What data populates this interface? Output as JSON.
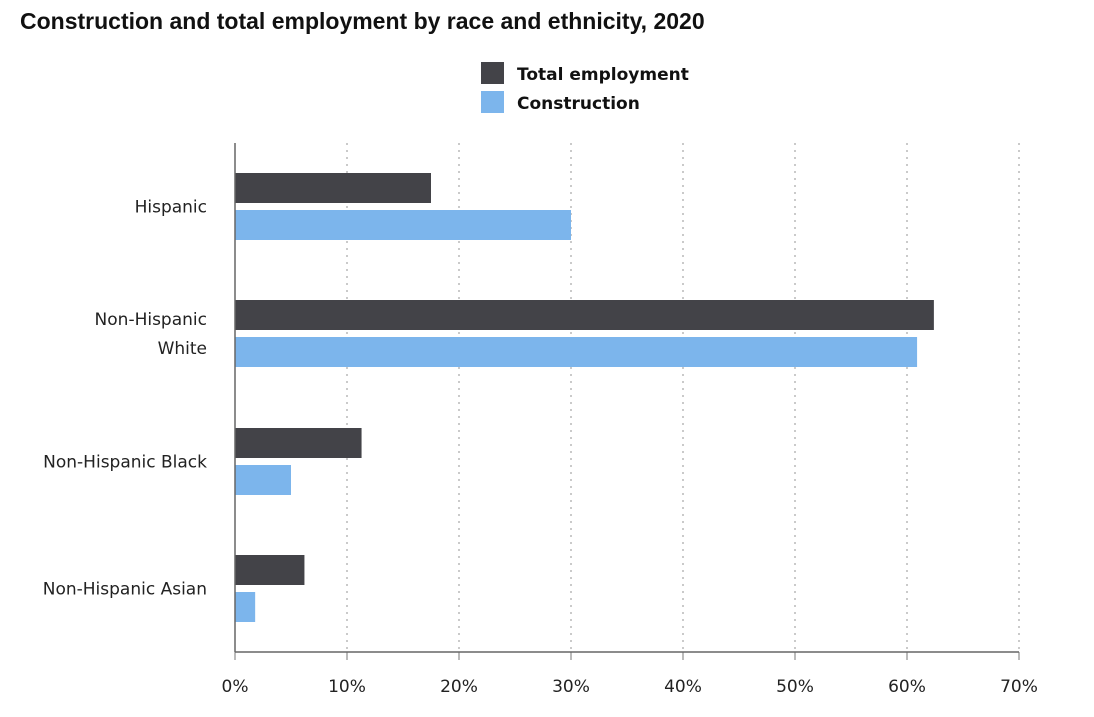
{
  "chart_data": {
    "type": "bar",
    "orientation": "horizontal",
    "title": "Construction and total employment by race and ethnicity, 2020",
    "xlabel": "",
    "ylabel": "",
    "categories": [
      [
        "Hispanic"
      ],
      [
        "Non-Hispanic",
        "White"
      ],
      [
        "Non-Hispanic Black"
      ],
      [
        "Non-Hispanic Asian"
      ]
    ],
    "series": [
      {
        "name": "Total employment",
        "color": "#434348",
        "values": [
          17.5,
          62.4,
          11.3,
          6.2
        ]
      },
      {
        "name": "Construction",
        "color": "#7cb5ec",
        "values": [
          30.0,
          60.9,
          5.0,
          1.8
        ]
      }
    ],
    "xlim": [
      0,
      70
    ],
    "ticks": [
      "0%",
      "10%",
      "20%",
      "30%",
      "40%",
      "50%",
      "60%",
      "70%"
    ],
    "tick_values": [
      0,
      10,
      20,
      30,
      40,
      50,
      60,
      70
    ],
    "grid": "vertical-dotted",
    "legend_position": "top-center"
  }
}
